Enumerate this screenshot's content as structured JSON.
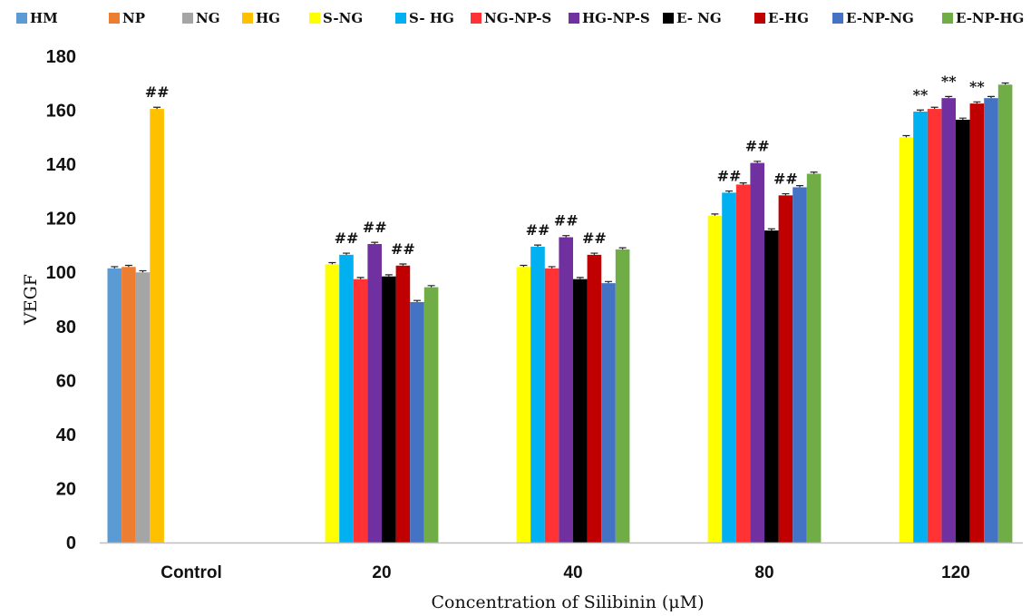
{
  "chart_data": {
    "type": "bar",
    "title": "",
    "xlabel": "Concentration of Silibinin (μM)",
    "ylabel": "VEGF",
    "ylim": [
      0,
      180
    ],
    "yticks": [
      0,
      20,
      40,
      60,
      80,
      100,
      120,
      140,
      160,
      180
    ],
    "grid": false,
    "legend_position": "top",
    "categories": [
      "Control",
      "20",
      "40",
      "80",
      "120"
    ],
    "series": [
      {
        "name": "HM",
        "color": "#5b9bd5",
        "values": [
          101.5,
          null,
          null,
          null,
          null
        ]
      },
      {
        "name": "NP",
        "color": "#ed7d31",
        "values": [
          102,
          null,
          null,
          null,
          null
        ]
      },
      {
        "name": "NG",
        "color": "#a5a5a5",
        "values": [
          100,
          null,
          null,
          null,
          null
        ]
      },
      {
        "name": "HG",
        "color": "#ffc000",
        "values": [
          160.5,
          null,
          null,
          null,
          null
        ]
      },
      {
        "name": "S-NG",
        "color": "#ffff00",
        "values": [
          null,
          103,
          102,
          121,
          150
        ]
      },
      {
        "name": "S- HG",
        "color": "#00b0f0",
        "values": [
          null,
          106.5,
          109.5,
          129.5,
          159.5
        ]
      },
      {
        "name": "NG-NP-S",
        "color": "#ff3333",
        "values": [
          null,
          97.5,
          101.5,
          132.5,
          160.5
        ]
      },
      {
        "name": "HG-NP-S",
        "color": "#7030a0",
        "values": [
          null,
          110.5,
          113,
          140.5,
          164.5
        ]
      },
      {
        "name": "E-  NG",
        "color": "#000000",
        "values": [
          null,
          98.5,
          97.5,
          115.5,
          156.5
        ]
      },
      {
        "name": "E-HG",
        "color": "#c00000",
        "values": [
          null,
          102.5,
          106.5,
          128.5,
          162.5
        ]
      },
      {
        "name": "E-NP-NG",
        "color": "#4472c4",
        "values": [
          null,
          89,
          96,
          131.5,
          164.5
        ]
      },
      {
        "name": "E-NP-HG",
        "color": "#70ad47",
        "values": [
          null,
          94.5,
          108.5,
          136.5,
          169.5
        ]
      }
    ],
    "annotations": [
      {
        "category": "Control",
        "series": "HG",
        "text": "##"
      },
      {
        "category": "20",
        "series": "S- HG",
        "text": "##"
      },
      {
        "category": "20",
        "series": "HG-NP-S",
        "text": "##"
      },
      {
        "category": "20",
        "series": "E-HG",
        "text": "##"
      },
      {
        "category": "40",
        "series": "S- HG",
        "text": "##"
      },
      {
        "category": "40",
        "series": "HG-NP-S",
        "text": "##"
      },
      {
        "category": "40",
        "series": "E-HG",
        "text": "##"
      },
      {
        "category": "80",
        "series": "S- HG",
        "text": "##"
      },
      {
        "category": "80",
        "series": "HG-NP-S",
        "text": "##"
      },
      {
        "category": "80",
        "series": "E-HG",
        "text": "##"
      },
      {
        "category": "120",
        "series": "S- HG",
        "text": "**"
      },
      {
        "category": "120",
        "series": "HG-NP-S",
        "text": "**"
      },
      {
        "category": "120",
        "series": "E-HG",
        "text": "**"
      }
    ]
  }
}
